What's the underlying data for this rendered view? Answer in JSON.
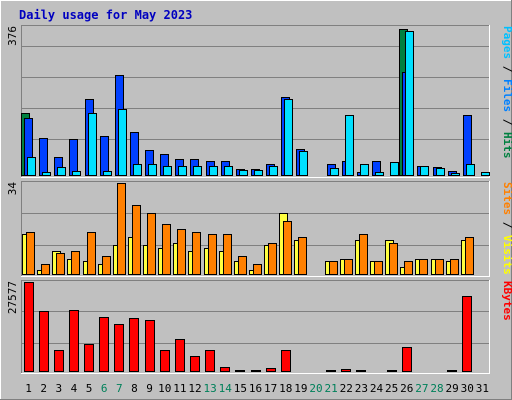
{
  "chart_data": [
    {
      "type": "bar",
      "title": "Daily usage for May 2023",
      "ylabel_parts": [
        {
          "text": "Pages",
          "color": "#00c0ff"
        },
        {
          "text": " / ",
          "color": "#000000"
        },
        {
          "text": "Files",
          "color": "#0080ff"
        },
        {
          "text": " / ",
          "color": "#000000"
        },
        {
          "text": "Hits",
          "color": "#008040"
        }
      ],
      "ymax_label": "376",
      "ylim": [
        0,
        376
      ],
      "categories": [
        "1",
        "2",
        "3",
        "4",
        "5",
        "6",
        "7",
        "8",
        "9",
        "10",
        "11",
        "12",
        "13",
        "14",
        "15",
        "16",
        "17",
        "18",
        "19",
        "20",
        "21",
        "22",
        "23",
        "24",
        "25",
        "26",
        "27",
        "28",
        "29",
        "30",
        "31"
      ],
      "weekend_days": [
        "6",
        "7",
        "13",
        "14",
        "20",
        "21",
        "27",
        "28"
      ],
      "series": [
        {
          "name": "Hits",
          "color": "#008040",
          "values": [
            158,
            0,
            0,
            0,
            0,
            0,
            0,
            0,
            0,
            0,
            0,
            0,
            0,
            0,
            0,
            0,
            0,
            0,
            0,
            0,
            0,
            0,
            0,
            0,
            0,
            370,
            0,
            0,
            0,
            0,
            0
          ]
        },
        {
          "name": "Files",
          "color": "#0040ff",
          "values": [
            147,
            95,
            47,
            93,
            195,
            102,
            254,
            111,
            65,
            55,
            42,
            42,
            38,
            38,
            17,
            17,
            30,
            200,
            67,
            0,
            30,
            37,
            10,
            37,
            0,
            262,
            25,
            22,
            12,
            153,
            0
          ]
        },
        {
          "name": "Pages",
          "color": "#00e0ff",
          "values": [
            48,
            10,
            23,
            13,
            160,
            13,
            170,
            30,
            30,
            25,
            25,
            25,
            25,
            25,
            15,
            15,
            25,
            195,
            63,
            0,
            20,
            153,
            30,
            10,
            35,
            367,
            25,
            20,
            8,
            30,
            10
          ]
        }
      ]
    },
    {
      "type": "bar",
      "ylabel_parts": [
        {
          "text": "Sites",
          "color": "#ff8000"
        },
        {
          "text": " / ",
          "color": "#000000"
        },
        {
          "text": "Visits",
          "color": "#ffff00"
        }
      ],
      "ymax_label": "34",
      "ylim": [
        0,
        34
      ],
      "categories": [
        "1",
        "2",
        "3",
        "4",
        "5",
        "6",
        "7",
        "8",
        "9",
        "10",
        "11",
        "12",
        "13",
        "14",
        "15",
        "16",
        "17",
        "18",
        "19",
        "20",
        "21",
        "22",
        "23",
        "24",
        "25",
        "26",
        "27",
        "28",
        "29",
        "30",
        "31"
      ],
      "series": [
        {
          "name": "Visits",
          "color": "#ffff40",
          "values": [
            15,
            2,
            9,
            6,
            5,
            4,
            11,
            14,
            11,
            10,
            12,
            9,
            10,
            9,
            5,
            2,
            11,
            23,
            13,
            0,
            5,
            6,
            13,
            5,
            13,
            3,
            6,
            6,
            5,
            13,
            0
          ]
        },
        {
          "name": "Sites",
          "color": "#ff8000",
          "values": [
            16,
            4,
            8,
            9,
            16,
            7,
            34,
            26,
            23,
            19,
            17,
            16,
            15,
            15,
            7,
            4,
            12,
            20,
            14,
            0,
            5,
            6,
            15,
            5,
            12,
            5,
            6,
            6,
            6,
            14,
            0
          ]
        }
      ]
    },
    {
      "type": "bar",
      "ylabel_parts": [
        {
          "text": "KBytes",
          "color": "#ff0000"
        }
      ],
      "ymax_label": "27577",
      "ylim": [
        0,
        27577
      ],
      "categories": [
        "1",
        "2",
        "3",
        "4",
        "5",
        "6",
        "7",
        "8",
        "9",
        "10",
        "11",
        "12",
        "13",
        "14",
        "15",
        "16",
        "17",
        "18",
        "19",
        "20",
        "21",
        "22",
        "23",
        "24",
        "25",
        "26",
        "27",
        "28",
        "29",
        "30",
        "31"
      ],
      "series": [
        {
          "name": "KBytes",
          "color": "#ff0000",
          "values": [
            27577,
            18700,
            6600,
            19100,
            8600,
            16900,
            14600,
            16500,
            15900,
            6600,
            10200,
            4900,
            6800,
            1400,
            500,
            600,
            1300,
            6800,
            0,
            0,
            600,
            800,
            600,
            300,
            600,
            7600,
            400,
            400,
            600,
            23300,
            300
          ]
        }
      ]
    }
  ]
}
